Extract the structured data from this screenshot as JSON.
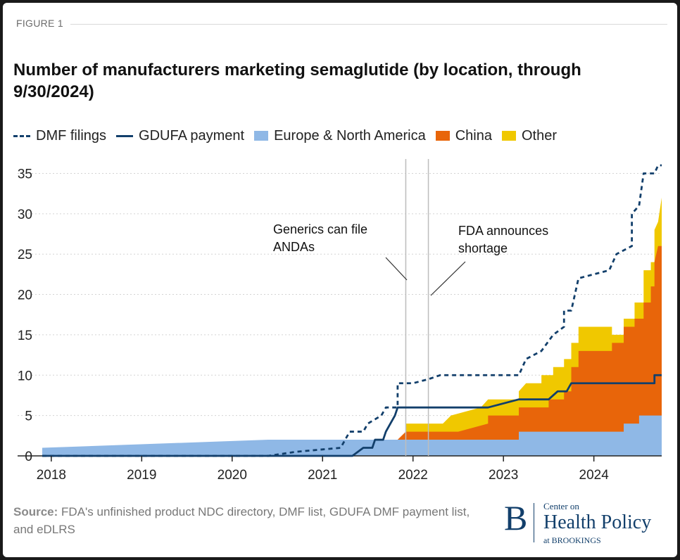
{
  "figure_label": "FIGURE 1",
  "source": {
    "prefix": "Source:",
    "text": "FDA's unfinished product NDC directory, DMF list, GDUFA DMF payment list, and eDLRS"
  },
  "logo": {
    "letter": "B",
    "line1": "Center on",
    "line2": "Health Policy",
    "line3": "at BROOKINGS"
  },
  "colors": {
    "dmf": "#123f6b",
    "gdufa": "#123f6b",
    "europe": "#8fb8e6",
    "china": "#e8650a",
    "other": "#f0c800",
    "annotation_line": "#bdbdbd",
    "grid": "#d4d4d4"
  },
  "chart_data": {
    "type": "area",
    "title": "Number of manufacturers marketing semaglutide (by location, through 9/30/2024)",
    "xlabel": "",
    "ylabel": "",
    "xlim": [
      2017.9,
      2024.75
    ],
    "ylim": [
      0,
      36
    ],
    "x_ticks": [
      "2018",
      "2019",
      "2020",
      "2021",
      "2022",
      "2023",
      "2024"
    ],
    "y_ticks": [
      0,
      5,
      10,
      15,
      20,
      25,
      30,
      35
    ],
    "grid": "horizontal dotted",
    "legend": [
      "DMF filings",
      "GDUFA payment",
      "Europe & North America",
      "China",
      "Other"
    ],
    "legend_position": "top",
    "stacked_areas": [
      {
        "name": "Europe & North America",
        "points": [
          [
            2017.9,
            1
          ],
          [
            2020.4,
            2
          ],
          [
            2023.17,
            2
          ],
          [
            2023.17,
            3
          ],
          [
            2024.33,
            3
          ],
          [
            2024.33,
            4
          ],
          [
            2024.5,
            4
          ],
          [
            2024.5,
            5
          ],
          [
            2024.75,
            5
          ]
        ]
      },
      {
        "name": "China",
        "points": [
          [
            2021.83,
            2
          ],
          [
            2021.92,
            3
          ],
          [
            2022.5,
            3
          ],
          [
            2022.83,
            4
          ],
          [
            2022.83,
            5
          ],
          [
            2023.17,
            5
          ],
          [
            2023.17,
            6
          ],
          [
            2023.5,
            6
          ],
          [
            2023.5,
            7
          ],
          [
            2023.67,
            7
          ],
          [
            2023.67,
            8
          ],
          [
            2023.75,
            8
          ],
          [
            2023.75,
            11
          ],
          [
            2023.83,
            11
          ],
          [
            2023.83,
            13
          ],
          [
            2024.2,
            13
          ],
          [
            2024.2,
            14
          ],
          [
            2024.33,
            14
          ],
          [
            2024.33,
            16
          ],
          [
            2024.45,
            16
          ],
          [
            2024.45,
            17
          ],
          [
            2024.55,
            17
          ],
          [
            2024.55,
            19
          ],
          [
            2024.63,
            19
          ],
          [
            2024.63,
            21
          ],
          [
            2024.67,
            21
          ],
          [
            2024.67,
            24
          ],
          [
            2024.71,
            26
          ],
          [
            2024.75,
            26
          ]
        ]
      },
      {
        "name": "Other",
        "points": [
          [
            2021.92,
            4
          ],
          [
            2022.33,
            4
          ],
          [
            2022.42,
            5
          ],
          [
            2022.75,
            6
          ],
          [
            2022.83,
            7
          ],
          [
            2023.17,
            7
          ],
          [
            2023.17,
            8
          ],
          [
            2023.25,
            9
          ],
          [
            2023.42,
            9
          ],
          [
            2023.42,
            10
          ],
          [
            2023.55,
            10
          ],
          [
            2023.55,
            11
          ],
          [
            2023.67,
            11
          ],
          [
            2023.67,
            12
          ],
          [
            2023.75,
            12
          ],
          [
            2023.75,
            14
          ],
          [
            2023.83,
            14
          ],
          [
            2023.83,
            16
          ],
          [
            2024.2,
            16
          ],
          [
            2024.2,
            15
          ],
          [
            2024.33,
            15
          ],
          [
            2024.33,
            17
          ],
          [
            2024.45,
            17
          ],
          [
            2024.45,
            19
          ],
          [
            2024.55,
            19
          ],
          [
            2024.55,
            23
          ],
          [
            2024.63,
            23
          ],
          [
            2024.63,
            24
          ],
          [
            2024.67,
            24
          ],
          [
            2024.67,
            28
          ],
          [
            2024.71,
            29
          ],
          [
            2024.75,
            32
          ]
        ]
      }
    ],
    "lines": [
      {
        "name": "DMF filings",
        "style": "dashed",
        "points": [
          [
            2017.9,
            0
          ],
          [
            2020.4,
            0
          ],
          [
            2020.7,
            0.5
          ],
          [
            2021.0,
            0.8
          ],
          [
            2021.2,
            1
          ],
          [
            2021.3,
            3
          ],
          [
            2021.45,
            3
          ],
          [
            2021.5,
            4
          ],
          [
            2021.65,
            5
          ],
          [
            2021.7,
            6
          ],
          [
            2021.83,
            6
          ],
          [
            2021.83,
            9
          ],
          [
            2022.0,
            9
          ],
          [
            2022.17,
            9.5
          ],
          [
            2022.3,
            10
          ],
          [
            2023.17,
            10
          ],
          [
            2023.25,
            12
          ],
          [
            2023.42,
            13
          ],
          [
            2023.55,
            15
          ],
          [
            2023.67,
            16
          ],
          [
            2023.67,
            18
          ],
          [
            2023.75,
            18
          ],
          [
            2023.83,
            22
          ],
          [
            2024.0,
            22.5
          ],
          [
            2024.17,
            23
          ],
          [
            2024.25,
            25
          ],
          [
            2024.42,
            26
          ],
          [
            2024.42,
            30
          ],
          [
            2024.5,
            31
          ],
          [
            2024.55,
            35
          ],
          [
            2024.67,
            35
          ],
          [
            2024.71,
            36
          ],
          [
            2024.75,
            36
          ]
        ]
      },
      {
        "name": "GDUFA payment",
        "style": "solid",
        "points": [
          [
            2017.9,
            0
          ],
          [
            2021.33,
            0
          ],
          [
            2021.45,
            1
          ],
          [
            2021.55,
            1
          ],
          [
            2021.58,
            2
          ],
          [
            2021.67,
            2
          ],
          [
            2021.7,
            3
          ],
          [
            2021.75,
            4
          ],
          [
            2021.8,
            5
          ],
          [
            2021.83,
            6
          ],
          [
            2022.83,
            6
          ],
          [
            2023.17,
            7
          ],
          [
            2023.5,
            7
          ],
          [
            2023.6,
            8
          ],
          [
            2023.7,
            8
          ],
          [
            2023.75,
            9
          ],
          [
            2024.67,
            9
          ],
          [
            2024.67,
            10
          ],
          [
            2024.75,
            10
          ]
        ]
      }
    ],
    "vertical_markers": [
      {
        "x": 2021.92,
        "label": "Generics can file ANDAs"
      },
      {
        "x": 2022.17,
        "label": "FDA announces shortage"
      }
    ],
    "annotations": [
      {
        "lines": [
          "Generics can file",
          "ANDAs"
        ]
      },
      {
        "lines": [
          "FDA announces",
          "shortage"
        ]
      }
    ]
  }
}
